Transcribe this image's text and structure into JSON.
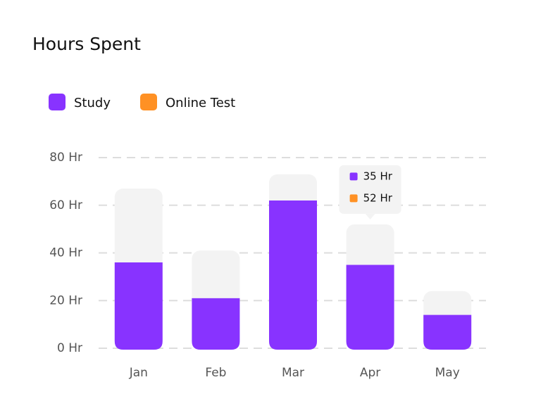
{
  "chart_data": {
    "type": "bar",
    "title": "Hours Spent",
    "categories": [
      "Jan",
      "Feb",
      "Mar",
      "Apr",
      "May"
    ],
    "series": [
      {
        "name": "Study",
        "color": "#8833ff",
        "values": [
          36,
          21,
          62,
          35,
          14
        ],
        "value_labels": [
          null,
          null,
          null,
          "35 Hr",
          null
        ]
      },
      {
        "name": "Online Test",
        "color": "#ff9124",
        "bar_color": "#f3f3f3",
        "values": [
          67,
          41,
          73,
          52,
          24
        ],
        "value_labels": [
          null,
          null,
          null,
          "52 Hr",
          null
        ]
      }
    ],
    "ylim": [
      0,
      80
    ],
    "yticks": [
      {
        "value": 0,
        "label": "0 Hr"
      },
      {
        "value": 20,
        "label": "20 Hr"
      },
      {
        "value": 40,
        "label": "40 Hr"
      },
      {
        "value": 60,
        "label": "60 Hr"
      },
      {
        "value": 80,
        "label": "80 Hr"
      }
    ],
    "grid": true
  }
}
